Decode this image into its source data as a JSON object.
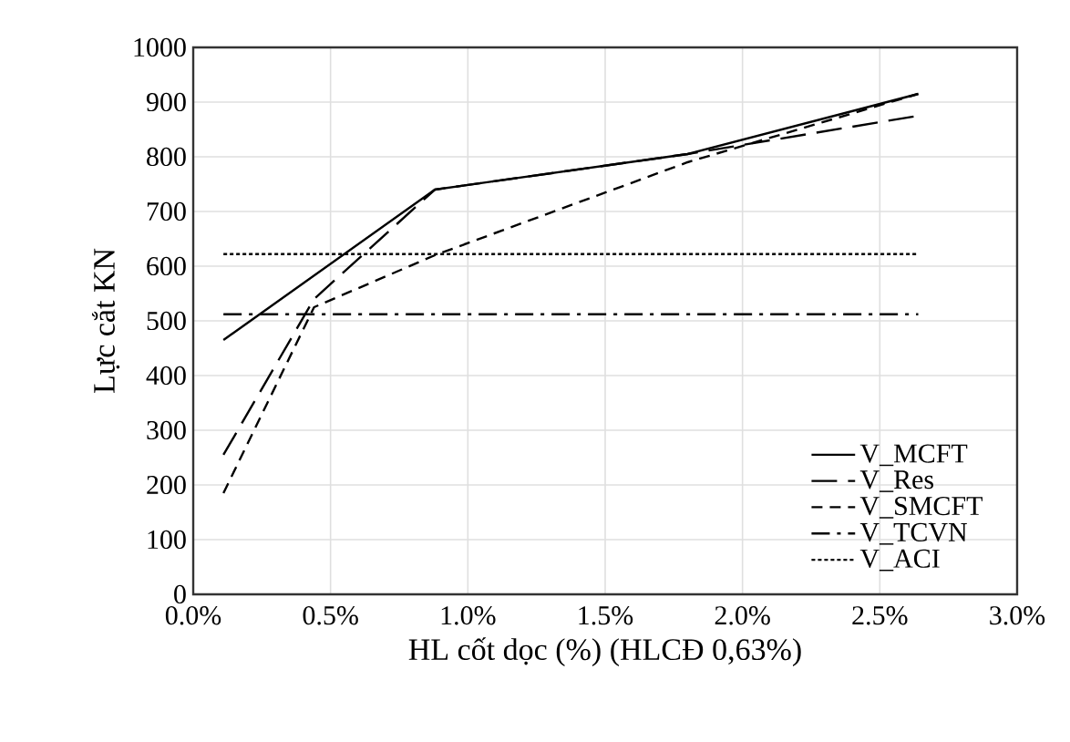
{
  "chart_data": {
    "type": "line",
    "xlabel": "HL cốt dọc (%) (HLCĐ 0,63%)",
    "ylabel": "Lực cắt KN",
    "xlim": [
      0,
      3
    ],
    "xticks": [
      {
        "value": 0,
        "label": "0.0%"
      },
      {
        "value": 0.5,
        "label": "0.5%"
      },
      {
        "value": 1,
        "label": "1.0%"
      },
      {
        "value": 1.5,
        "label": "1.5%"
      },
      {
        "value": 2,
        "label": "2.0%"
      },
      {
        "value": 2.5,
        "label": "2.5%"
      },
      {
        "value": 3,
        "label": "3.0%"
      }
    ],
    "ylim": [
      0,
      1000
    ],
    "yticks": [
      0,
      100,
      200,
      300,
      400,
      500,
      600,
      700,
      800,
      900,
      1000
    ],
    "grid": true,
    "legend": "bottom right",
    "marker": "none",
    "series": [
      {
        "name": "V_MCFT",
        "color": "#000000",
        "line_style": "solid",
        "x": [
          0.11,
          0.88,
          1.8,
          2.64
        ],
        "values": [
          465,
          740,
          805,
          915
        ]
      },
      {
        "name": "V_Res",
        "color": "#000000",
        "line_style": "longdashed",
        "x": [
          0.11,
          0.44,
          0.88,
          1.8,
          2.64
        ],
        "values": [
          255,
          540,
          740,
          805,
          875
        ]
      },
      {
        "name": "V_SMCFT",
        "color": "#000000",
        "line_style": "dashed",
        "x": [
          0.11,
          0.44,
          0.88,
          1.8,
          2.64
        ],
        "values": [
          185,
          525,
          620,
          790,
          915
        ]
      },
      {
        "name": "V_TCVN",
        "color": "#000000",
        "line_style": "dashdot",
        "x": [
          0.11,
          2.64
        ],
        "values": [
          512,
          512
        ]
      },
      {
        "name": "V_ACI",
        "color": "#000000",
        "line_style": "dotted",
        "x": [
          0.11,
          2.64
        ],
        "values": [
          622,
          622
        ]
      }
    ]
  }
}
